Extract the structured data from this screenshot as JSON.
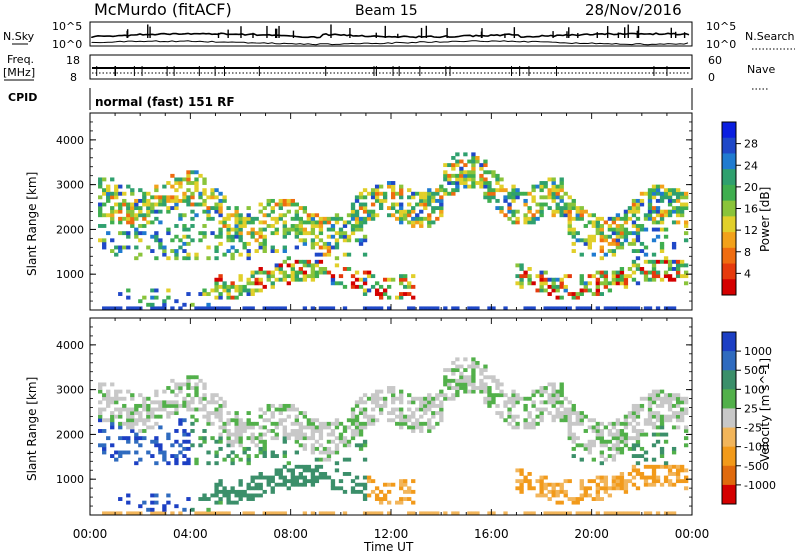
{
  "header": {
    "station": "McMurdo (fitACF)",
    "beam": "Beam 15",
    "date": "28/Nov/2016"
  },
  "aux_panels": {
    "nsky_label": "N.Sky",
    "nsky_ticks": [
      "10^5",
      "10^0"
    ],
    "nsearch_label": "N.Search",
    "nsearch_ticks": [
      "10^5",
      "10^0"
    ],
    "freq_label_1": "Freq.",
    "freq_label_2": "[MHz]",
    "freq_ticks": [
      "18",
      "8"
    ],
    "nave_label": "Nave",
    "nave_ticks": [
      "60",
      "0"
    ],
    "cpid_label": "CPID",
    "cpid_value": "normal (fast) 151 RF"
  },
  "chart_data": [
    {
      "type": "heatmap",
      "ylabel": "Slant Range [km]",
      "xlabel": "Time UT",
      "ylim": [
        200,
        4600
      ],
      "yticks": [
        "4000",
        "3000",
        "2000",
        "1000"
      ],
      "xticks": [
        "00:00",
        "04:00",
        "08:00",
        "12:00",
        "16:00",
        "20:00",
        "00:00"
      ],
      "colorbar": {
        "label": "Power [dB]",
        "ticks": [
          "28",
          "24",
          "20",
          "16",
          "12",
          "8",
          "4"
        ],
        "colors": [
          "#0b1fe0",
          "#1f48c8",
          "#1f7bd0",
          "#2fa06e",
          "#3fae4f",
          "#8ac43a",
          "#e1cf2a",
          "#f2a11a",
          "#ef6c10",
          "#e63a0c",
          "#d40000"
        ]
      }
    },
    {
      "type": "heatmap",
      "ylabel": "Slant Range [km]",
      "xlabel": "Time UT",
      "ylim": [
        200,
        4600
      ],
      "yticks": [
        "4000",
        "3000",
        "2000",
        "1000"
      ],
      "xticks": [
        "00:00",
        "04:00",
        "08:00",
        "12:00",
        "16:00",
        "20:00",
        "00:00"
      ],
      "colorbar": {
        "label": "Velocity [m s^-1]",
        "ticks": [
          "1000",
          "500",
          "100",
          "25",
          "-25",
          "-100",
          "-500",
          "-1000"
        ],
        "colors": [
          "#1c3fc4",
          "#2f6bbf",
          "#3b8f6a",
          "#52b04a",
          "#c8c8c8",
          "#f2b55a",
          "#f29a1a",
          "#e06a0d",
          "#d40000"
        ]
      }
    }
  ]
}
